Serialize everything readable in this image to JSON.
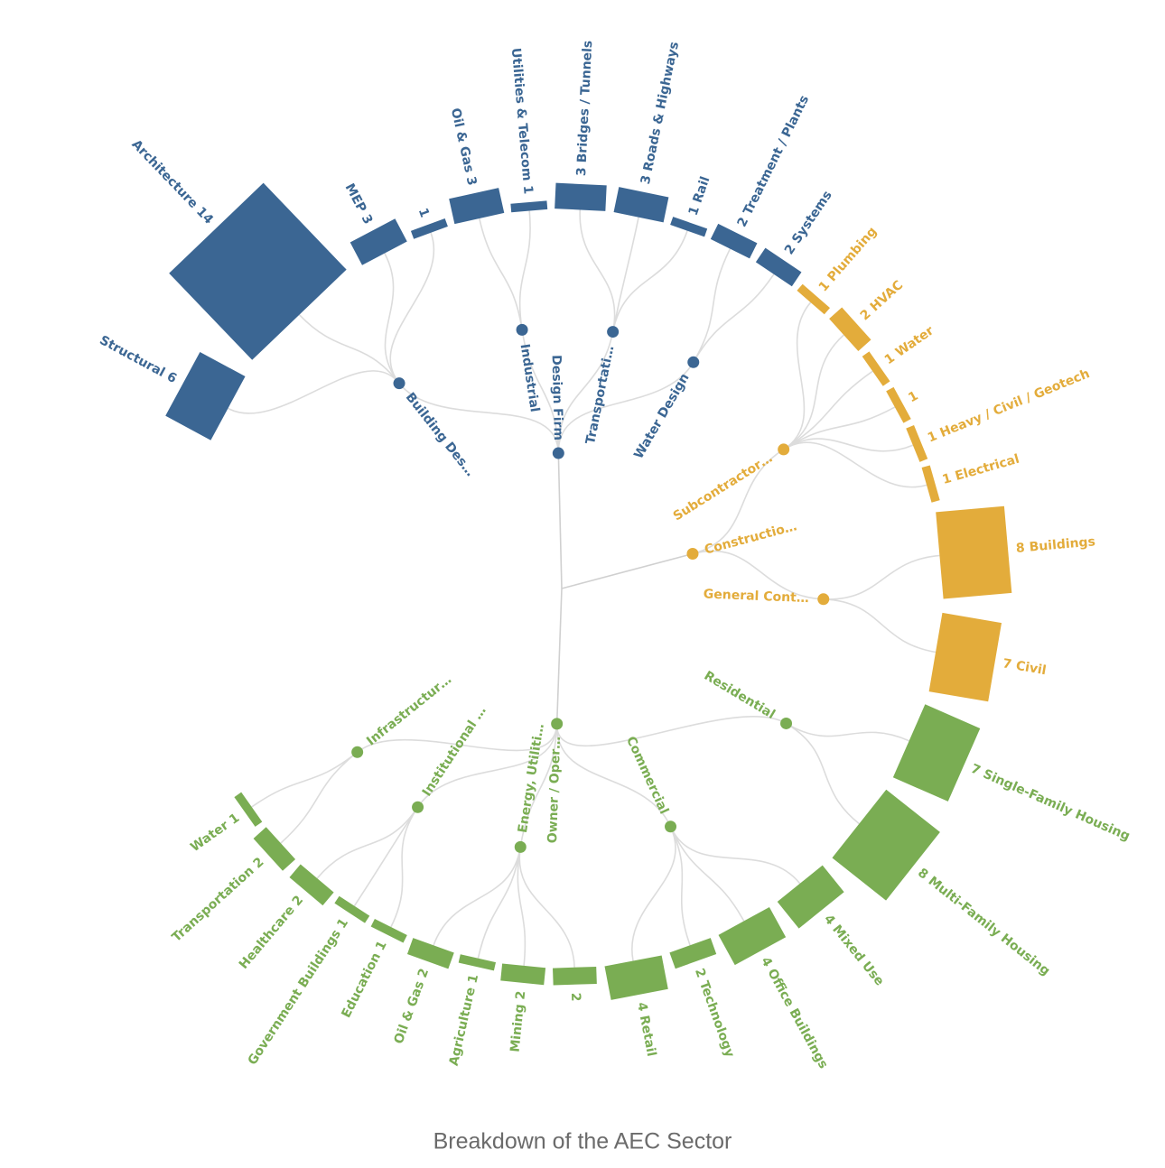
{
  "caption": "Breakdown of the AEC Sector",
  "tree": {
    "groups": [
      {
        "label": "Design Firm",
        "color": "#3b6693",
        "children": [
          {
            "label": "Building Des…",
            "leaves": [
              {
                "name": "Structural",
                "value": 6
              },
              {
                "name": "Architecture",
                "value": 14
              },
              {
                "name": "MEP",
                "value": 3
              },
              {
                "value": 1
              }
            ]
          },
          {
            "label": "Industrial",
            "leaves": [
              {
                "name": "Oil & Gas",
                "value": 3
              },
              {
                "name": "Utilities & Telecom",
                "value": 1
              }
            ]
          },
          {
            "label": "Transportati…",
            "leaves": [
              {
                "name": "Bridges / Tunnels",
                "value": 3
              },
              {
                "name": "Roads & Highways",
                "value": 3
              },
              {
                "name": "Rail",
                "value": 1
              }
            ]
          },
          {
            "label": "Water Design",
            "leaves": [
              {
                "name": "Treatment / Plants",
                "value": 2
              },
              {
                "name": "Systems",
                "value": 2
              }
            ]
          }
        ]
      },
      {
        "label": "Constructio…",
        "color": "#e3ac3b",
        "children": [
          {
            "label": "Subcontractor…",
            "leaves": [
              {
                "name": "Plumbing",
                "value": 1
              },
              {
                "name": "HVAC",
                "value": 2
              },
              {
                "name": "Water",
                "value": 1
              },
              {
                "value": 1
              },
              {
                "name": "Heavy / Civil / Geotech",
                "value": 1
              },
              {
                "name": "Electrical",
                "value": 1
              }
            ]
          },
          {
            "label": "General Cont…",
            "leaves": [
              {
                "name": "Buildings",
                "value": 8
              },
              {
                "name": "Civil",
                "value": 7
              }
            ]
          }
        ]
      },
      {
        "label": "Owner / Oper…",
        "color": "#7aad53",
        "children": [
          {
            "label": "Residential",
            "leaves": [
              {
                "name": "Single-Family Housing",
                "value": 7
              },
              {
                "name": "Multi-Family Housing",
                "value": 8
              }
            ]
          },
          {
            "label": "Commercial",
            "leaves": [
              {
                "name": "Mixed Use",
                "value": 4
              },
              {
                "name": "Office Buildings",
                "value": 4
              },
              {
                "name": "Technology",
                "value": 2
              },
              {
                "name": "Retail",
                "value": 4
              }
            ]
          },
          {
            "label": "Energy, Utiliti…",
            "leaves": [
              {
                "value": 2
              },
              {
                "name": "Mining",
                "value": 2
              },
              {
                "name": "Agriculture",
                "value": 1
              },
              {
                "name": "Oil & Gas",
                "value": 2
              }
            ]
          },
          {
            "label": "Institutional …",
            "leaves": [
              {
                "name": "Education",
                "value": 1
              },
              {
                "name": "Government Buildings",
                "value": 1
              },
              {
                "name": "Healthcare",
                "value": 2
              }
            ]
          },
          {
            "label": "Infrastructur…",
            "leaves": [
              {
                "name": "Transportation",
                "value": 2
              },
              {
                "name": "Water",
                "value": 1
              }
            ]
          }
        ]
      }
    ]
  }
}
